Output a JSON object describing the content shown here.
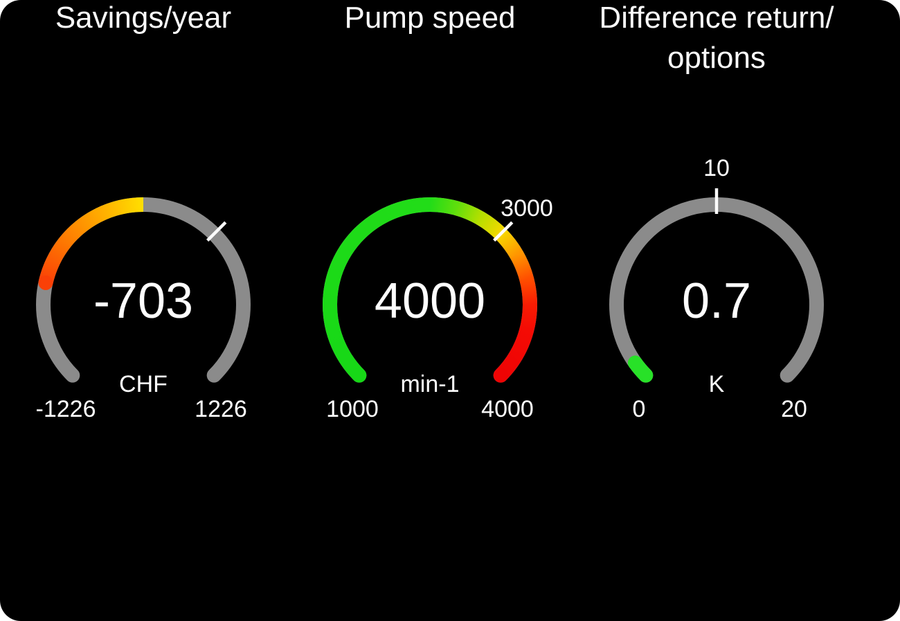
{
  "window": {
    "background_color": "#000000",
    "outside_color": "#ffffff",
    "track_gray": "#8b8b8b",
    "text_color": "#ffffff"
  },
  "chart_data": [
    {
      "type": "gauge",
      "title_line1": "Savings/year",
      "title_line2": "",
      "value": -703,
      "value_label": "-703",
      "unit": "CHF",
      "min": -1226,
      "max": 1226,
      "min_label": "-1226",
      "max_label": "1226",
      "start_angle": -135,
      "end_angle": 135,
      "track_color": "#8b8b8b",
      "fill": {
        "from_value": 0,
        "to_value": -703,
        "stops": [
          {
            "at": 0.0,
            "color": "#ffdf00"
          },
          {
            "at": 0.35,
            "color": "#ffa800"
          },
          {
            "at": 0.7,
            "color": "#fd7302"
          },
          {
            "at": 1.0,
            "color": "#fa4007"
          }
        ],
        "round_cap_from": false,
        "round_cap_to": true
      },
      "ticks": [
        {
          "value": null,
          "angle_deg": 45,
          "label": ""
        }
      ]
    },
    {
      "type": "gauge",
      "title_line1": "Pump speed",
      "title_line2": "",
      "value": 4000,
      "value_label": "4000",
      "unit": "min-1",
      "min": 1000,
      "max": 4000,
      "min_label": "1000",
      "max_label": "4000",
      "start_angle": -135,
      "end_angle": 135,
      "track_color": "#8b8b8b",
      "fill": {
        "from_value": 1000,
        "to_value": 4000,
        "stops": [
          {
            "at": 0.0,
            "color": "#17d817"
          },
          {
            "at": 0.5,
            "color": "#22dc18"
          },
          {
            "at": 0.54,
            "color": "#44dd11"
          },
          {
            "at": 0.6,
            "color": "#a8e000"
          },
          {
            "at": 0.667,
            "color": "#f6d800"
          },
          {
            "at": 0.72,
            "color": "#ff9900"
          },
          {
            "at": 0.78,
            "color": "#ff4c00"
          },
          {
            "at": 0.85,
            "color": "#f60d04"
          },
          {
            "at": 1.0,
            "color": "#ee0404"
          }
        ],
        "round_cap_from": true,
        "round_cap_to": true
      },
      "ticks": [
        {
          "value": 3000,
          "label": "3000"
        }
      ]
    },
    {
      "type": "gauge",
      "title_line1": "Difference return/",
      "title_line2": "options",
      "value": 0.7,
      "value_label": "0.7",
      "unit": "K",
      "min": 0,
      "max": 20,
      "min_label": "0",
      "max_label": "20",
      "start_angle": -135,
      "end_angle": 135,
      "track_color": "#8b8b8b",
      "fill": {
        "from_value": 0,
        "to_value": 0.7,
        "stops": [
          {
            "at": 0.0,
            "color": "#28e128"
          },
          {
            "at": 1.0,
            "color": "#28e128"
          }
        ],
        "round_cap_from": true,
        "round_cap_to": true
      },
      "ticks": [
        {
          "value": 10,
          "label": "10"
        }
      ]
    }
  ]
}
